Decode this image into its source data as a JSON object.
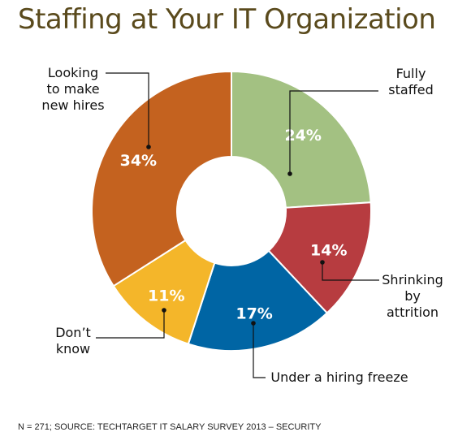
{
  "chart_data": {
    "type": "pie",
    "title": "Staffing at Your IT Organization",
    "slices": [
      {
        "label_lines": [
          "Fully",
          "staffed"
        ],
        "value": 24,
        "value_label": "24%",
        "color": "#a3c182"
      },
      {
        "label_lines": [
          "Shrinking",
          "by",
          "attrition"
        ],
        "value": 14,
        "value_label": "14%",
        "color": "#b73c40"
      },
      {
        "label_lines": [
          "Under a hiring freeze"
        ],
        "value": 17,
        "value_label": "17%",
        "color": "#0065a4"
      },
      {
        "label_lines": [
          "Don’t",
          "know"
        ],
        "value": 11,
        "value_label": "11%",
        "color": "#f4b62a"
      },
      {
        "label_lines": [
          "Looking",
          "to make",
          "new hires"
        ],
        "value": 34,
        "value_label": "34%",
        "color": "#c4621f"
      }
    ],
    "footnote": "N = 271; SOURCE: TECHTARGET IT SALARY SURVEY 2013 – SECURITY"
  }
}
